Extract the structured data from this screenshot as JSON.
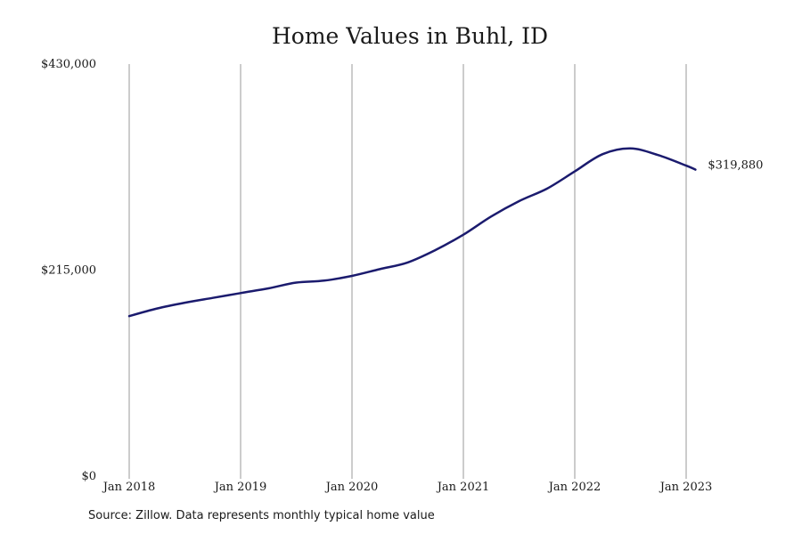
{
  "chart_data": {
    "type": "line",
    "title": "Home Values in Buhl, ID",
    "xlabel": "",
    "ylabel": "",
    "x_tick_labels": [
      "Jan 2018",
      "Jan 2019",
      "Jan 2020",
      "Jan 2021",
      "Jan 2022",
      "Jan 2023"
    ],
    "y_tick_labels": [
      "$0",
      "$215,000",
      "$430,000"
    ],
    "y_ticks": [
      0,
      215000,
      430000
    ],
    "ylim": [
      0,
      430000
    ],
    "xlim": [
      "2018-01",
      "2023-03"
    ],
    "grid": "vertical lines at January of each year",
    "legend": "none",
    "line_color": "#1b1b6e",
    "end_label": "$319,880",
    "series": [
      {
        "x": [
          "2018-01",
          "2018-04",
          "2018-07",
          "2018-10",
          "2019-01",
          "2019-04",
          "2019-07",
          "2019-10",
          "2020-01",
          "2020-04",
          "2020-07",
          "2020-10",
          "2021-01",
          "2021-04",
          "2021-07",
          "2021-10",
          "2022-01",
          "2022-04",
          "2022-07",
          "2022-10",
          "2023-01",
          "2023-02"
        ],
        "values": [
          167000,
          175000,
          181000,
          186000,
          191000,
          196000,
          202000,
          204000,
          209000,
          216000,
          223000,
          236000,
          252000,
          271000,
          287000,
          300000,
          318000,
          336000,
          342000,
          335000,
          324000,
          319880
        ]
      }
    ]
  },
  "source_note": "Source: Zillow. Data represents monthly typical home value"
}
